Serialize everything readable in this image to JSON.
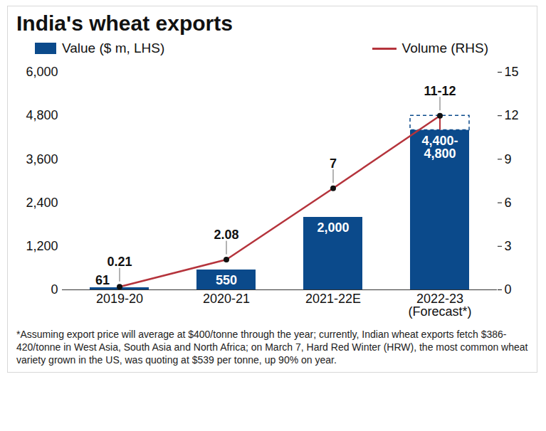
{
  "chart_data": {
    "type": "bar",
    "title": "India's wheat exports",
    "caption": "*Assuming export price will average at $400/tonne through the year; currently, Indian wheat exports fetch $386-420/tonne in West Asia, South Asia and North Africa; on March 7, Hard Red Winter (HRW), the most common wheat variety grown in the US, was quoting at $539 per tonne, up 90% on year.",
    "categories": [
      "2019-20",
      "2020-21",
      "2021-22E",
      "2022-23 (Forecast*)"
    ],
    "ylim": [
      0,
      6000
    ],
    "yticks": [
      0,
      {
        "value": 1200,
        "label": "1,200"
      },
      {
        "value": 2400,
        "label": "2,400"
      },
      {
        "value": 3600,
        "label": "3,600"
      },
      {
        "value": 4800,
        "label": "4,800"
      },
      {
        "value": 6000,
        "label": "6,000"
      }
    ],
    "y2lim": [
      0,
      15
    ],
    "y2ticks": [
      0,
      3,
      6,
      9,
      12,
      15
    ],
    "legend": "top",
    "grid": false,
    "data_labels": true,
    "series": [
      {
        "name": "Value ($ m, LHS)",
        "type": "bar",
        "color": "#0b4a8b",
        "values": [
          61,
          550,
          2000,
          4400
        ],
        "range_high": [
          null,
          null,
          null,
          4800
        ],
        "value_labels": [
          "61",
          "550",
          "2,000",
          "4,400-4,800"
        ]
      },
      {
        "name": "Volume (RHS)",
        "type": "line",
        "axis": "y2",
        "color": "#b5343c",
        "marker": "circle",
        "values": [
          0.21,
          2.08,
          7,
          12
        ],
        "range_low": [
          null,
          null,
          null,
          11
        ],
        "value_labels": [
          "0.21",
          "2.08",
          "7",
          "11-12"
        ]
      }
    ]
  }
}
